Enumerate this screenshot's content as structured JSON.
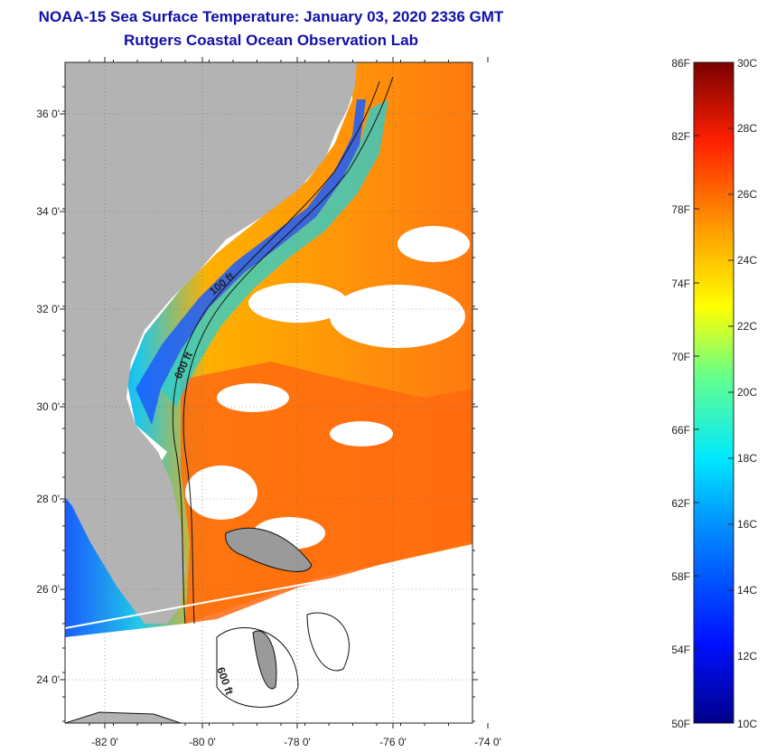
{
  "title": {
    "line1": "NOAA-15 Sea Surface Temperature:  January 03, 2020 2336 GMT",
    "line2": "Rutgers Coastal Ocean Observation Lab"
  },
  "map": {
    "lat_labels": [
      "36 0'",
      "34 0'",
      "32 0'",
      "30 0'",
      "28 0'",
      "26 0'",
      "24 0'"
    ],
    "lon_labels": [
      "-82 0'",
      "-80 0'",
      "-78 0'",
      "-76 0'",
      "-74 0'"
    ],
    "isobath_labels": [
      "100 ft",
      "600 ft",
      "600 ft"
    ],
    "colors": {
      "land": "#b3b3b3",
      "cloud": "#ffffff",
      "warm": "#ff7a10",
      "cool": "#1a5cff"
    }
  },
  "colorbar": {
    "fahrenheit_labels": [
      "86F",
      "82F",
      "78F",
      "74F",
      "70F",
      "66F",
      "62F",
      "58F",
      "54F",
      "50F"
    ],
    "celsius_labels": [
      "30C",
      "28C",
      "26C",
      "24C",
      "22C",
      "20C",
      "18C",
      "16C",
      "14C",
      "12C",
      "10C"
    ]
  }
}
